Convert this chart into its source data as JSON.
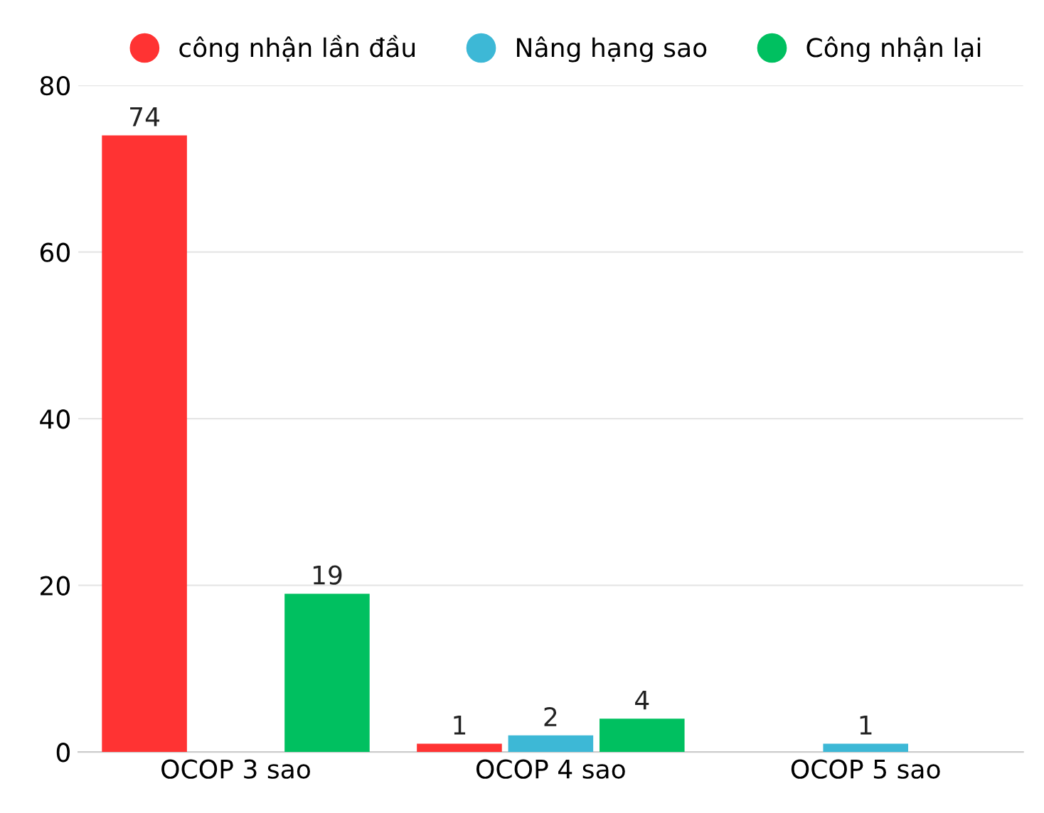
{
  "chart_data": {
    "type": "bar",
    "categories": [
      "OCOP 3 sao",
      "OCOP 4 sao",
      "OCOP 5 sao"
    ],
    "series": [
      {
        "name": "công nhận lần đầu",
        "color": "#ff3333",
        "values": [
          74,
          1,
          null
        ]
      },
      {
        "name": "Nâng hạng sao",
        "color": "#3db8d6",
        "values": [
          null,
          2,
          1
        ]
      },
      {
        "name": "Công nhận lại",
        "color": "#00c060",
        "values": [
          19,
          4,
          null
        ]
      }
    ],
    "ylim": [
      0,
      80
    ],
    "yticks": [
      0,
      20,
      40,
      60,
      80
    ],
    "grid": "y",
    "legend": "top",
    "data_labels": true
  }
}
